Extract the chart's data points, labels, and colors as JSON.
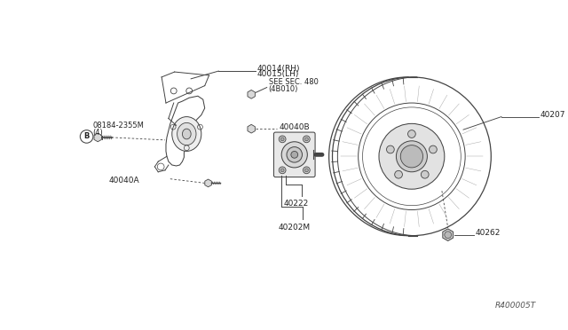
{
  "bg_color": "#ffffff",
  "fig_width": 6.4,
  "fig_height": 3.72,
  "dpi": 100,
  "labels": {
    "top_part1": "40014(RH)",
    "top_part2": "40015(LH)",
    "see_sec1": "SEE SEC. 480",
    "see_sec2": "(4B010)",
    "bolt_label1": "08184-2355M",
    "bolt_label2": "(4)",
    "part_40040A": "40040A",
    "part_40040B": "40040B",
    "part_40222": "40222",
    "part_40202M": "40202M",
    "part_40207": "40207",
    "part_40262": "40262",
    "ref_code": "R400005T"
  },
  "lc": "#444444",
  "tc": "#222222",
  "fs": 6.5
}
